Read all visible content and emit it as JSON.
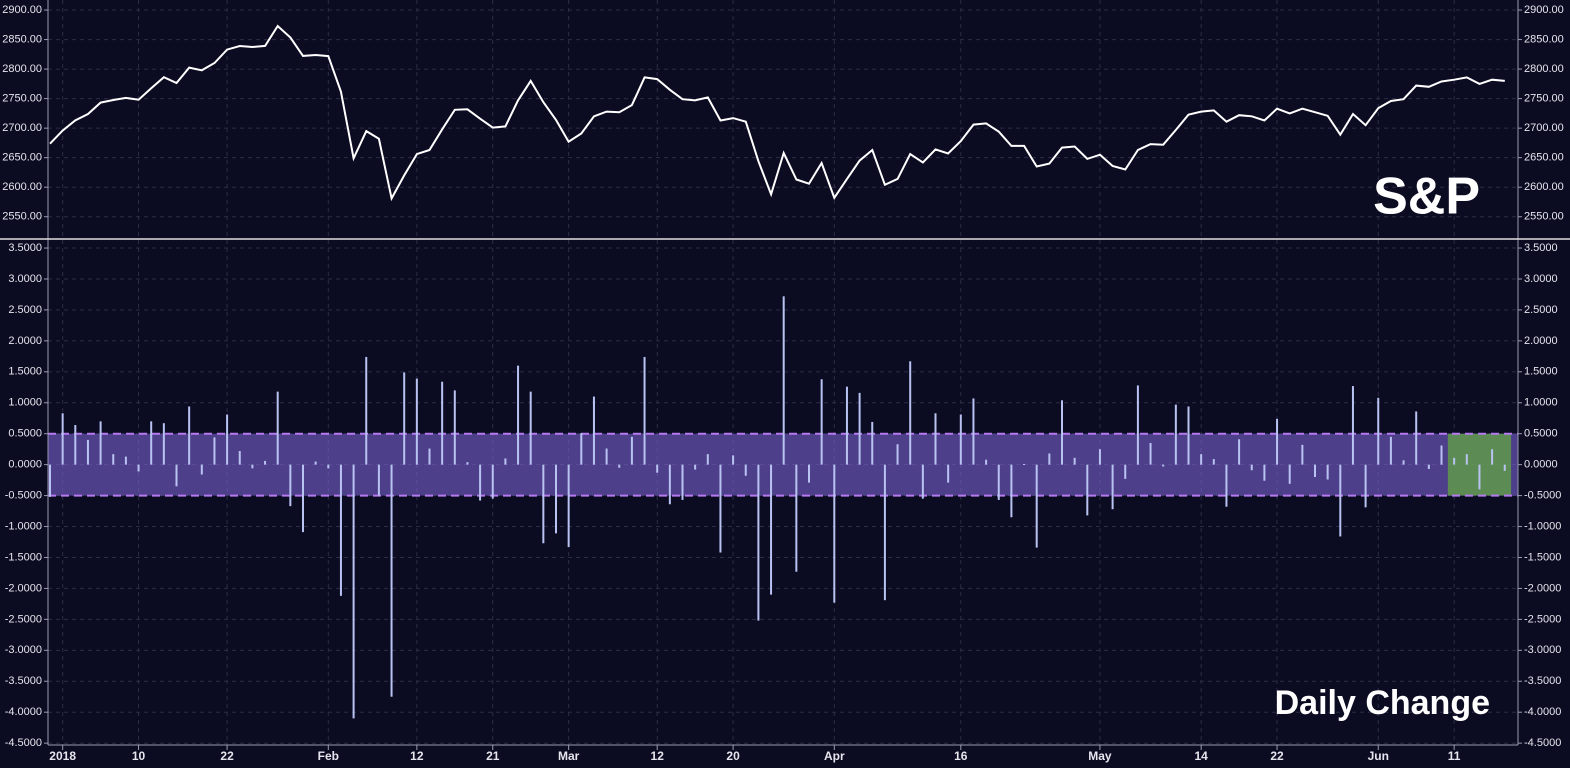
{
  "chart_data": [
    {
      "type": "line",
      "annotation": "S&P",
      "color": "#ffffff",
      "values": [
        2673.6,
        2695.8,
        2713.1,
        2723.9,
        2743.2,
        2747.7,
        2751.3,
        2748.2,
        2767.6,
        2786.2,
        2776.4,
        2802.6,
        2798.0,
        2810.3,
        2833.0,
        2839.1,
        2837.5,
        2839.3,
        2872.9,
        2853.5,
        2822.4,
        2823.8,
        2822,
        2762,
        2649,
        2695,
        2682,
        2581,
        2620,
        2656,
        2663,
        2698,
        2731,
        2732,
        2716,
        2701,
        2703,
        2747,
        2780,
        2744,
        2714,
        2677,
        2691,
        2720,
        2728,
        2727,
        2739,
        2786,
        2783,
        2765,
        2749,
        2747,
        2752,
        2713,
        2717,
        2711,
        2644,
        2588,
        2658,
        2613,
        2606,
        2641,
        2582,
        2614,
        2645,
        2663,
        2604,
        2614,
        2656,
        2642,
        2664,
        2657,
        2678,
        2706,
        2708,
        2694,
        2670,
        2670,
        2635,
        2640,
        2667,
        2669,
        2648,
        2655,
        2636,
        2630,
        2663,
        2673,
        2672,
        2697,
        2723,
        2728,
        2730,
        2711,
        2722,
        2720,
        2713,
        2733,
        2725,
        2733,
        2727,
        2721,
        2689,
        2724,
        2705,
        2734,
        2746,
        2749,
        2772,
        2770,
        2779,
        2782,
        2786,
        2775,
        2782,
        2780
      ],
      "ylim": [
        2514,
        2917
      ],
      "yticks": [
        {
          "value": 2900,
          "label": "2900.00"
        },
        {
          "value": 2850,
          "label": "2850.00"
        },
        {
          "value": 2800,
          "label": "2800.00"
        },
        {
          "value": 2750,
          "label": "2750.00"
        },
        {
          "value": 2700,
          "label": "2700.00"
        },
        {
          "value": 2650,
          "label": "2650.00"
        },
        {
          "value": 2600,
          "label": "2600.00"
        },
        {
          "value": 2550,
          "label": "2550.00"
        }
      ],
      "grid": true
    },
    {
      "type": "bar",
      "annotation": "Daily Change",
      "color": "#b9c3f2",
      "categories": [
        null,
        "2018",
        null,
        null,
        null,
        null,
        null,
        "10",
        null,
        null,
        null,
        null,
        null,
        null,
        "22",
        null,
        null,
        null,
        null,
        null,
        null,
        null,
        "Feb",
        null,
        null,
        null,
        null,
        null,
        null,
        "12",
        null,
        null,
        null,
        null,
        null,
        "21",
        null,
        null,
        null,
        null,
        null,
        "Mar",
        null,
        null,
        null,
        null,
        null,
        null,
        "12",
        null,
        null,
        null,
        null,
        null,
        "20",
        null,
        null,
        null,
        null,
        null,
        null,
        null,
        "Apr",
        null,
        null,
        null,
        null,
        null,
        null,
        null,
        null,
        null,
        "16",
        null,
        null,
        null,
        null,
        null,
        null,
        null,
        null,
        null,
        null,
        "May",
        null,
        null,
        null,
        null,
        null,
        null,
        null,
        "14",
        null,
        null,
        null,
        null,
        null,
        "22",
        null,
        null,
        null,
        null,
        null,
        null,
        null,
        "Jun",
        null,
        null,
        null,
        null,
        null,
        "11",
        null,
        null,
        null,
        null
      ],
      "values": [
        -0.52,
        0.83,
        0.64,
        0.4,
        0.7,
        0.17,
        0.13,
        -0.11,
        0.7,
        0.67,
        -0.35,
        0.94,
        -0.16,
        0.44,
        0.81,
        0.22,
        -0.06,
        0.06,
        1.18,
        -0.67,
        -1.09,
        0.05,
        -0.06,
        -2.12,
        -4.1,
        1.74,
        -0.5,
        -3.75,
        1.49,
        1.39,
        0.26,
        1.34,
        1.2,
        0.04,
        -0.58,
        -0.55,
        0.1,
        1.6,
        1.18,
        -1.27,
        -1.11,
        -1.33,
        0.51,
        1.1,
        0.26,
        -0.05,
        0.45,
        1.74,
        -0.13,
        -0.64,
        -0.57,
        -0.08,
        0.17,
        -1.42,
        0.15,
        -0.18,
        -2.52,
        -2.1,
        2.72,
        -1.73,
        -0.29,
        1.38,
        -2.23,
        1.26,
        1.16,
        0.69,
        -2.19,
        0.33,
        1.67,
        -0.55,
        0.83,
        -0.29,
        0.81,
        1.07,
        0.08,
        -0.57,
        -0.85,
        0.01,
        -1.34,
        0.18,
        1.04,
        0.11,
        -0.82,
        0.25,
        -0.72,
        -0.23,
        1.28,
        0.35,
        -0.03,
        0.97,
        0.94,
        0.17,
        0.09,
        -0.68,
        0.41,
        -0.09,
        -0.26,
        0.74,
        -0.31,
        0.32,
        -0.2,
        -0.24,
        -1.16,
        1.27,
        -0.69,
        1.08,
        0.45,
        0.07,
        0.86,
        -0.07,
        0.31,
        0.11,
        0.17,
        -0.4,
        0.25,
        -0.1
      ],
      "ylim": [
        -4.53,
        3.63
      ],
      "yticks": [
        {
          "value": 3.5,
          "label": "3.5000"
        },
        {
          "value": 3,
          "label": "3.0000"
        },
        {
          "value": 2.5,
          "label": "2.5000"
        },
        {
          "value": 2,
          "label": "2.0000"
        },
        {
          "value": 1.5,
          "label": "1.5000"
        },
        {
          "value": 1,
          "label": "1.0000"
        },
        {
          "value": 0.5,
          "label": "0.5000"
        },
        {
          "value": 0,
          "label": "0.0000"
        },
        {
          "value": -0.5,
          "label": "-0.5000"
        },
        {
          "value": -1,
          "label": "-1.0000"
        },
        {
          "value": -1.5,
          "label": "-1.5000"
        },
        {
          "value": -2,
          "label": "-2.0000"
        },
        {
          "value": -2.5,
          "label": "-2.5000"
        },
        {
          "value": -3,
          "label": "-3.0000"
        },
        {
          "value": -3.5,
          "label": "-3.5000"
        },
        {
          "value": -4,
          "label": "-4.0000"
        },
        {
          "value": -4.5,
          "label": "-4.5000"
        }
      ],
      "band": [
        -0.5,
        0.5
      ],
      "band_color": "#7b62d0",
      "band_line_color": "#b57af0",
      "highlight_color": "#5f9a4a",
      "grid": true
    }
  ]
}
